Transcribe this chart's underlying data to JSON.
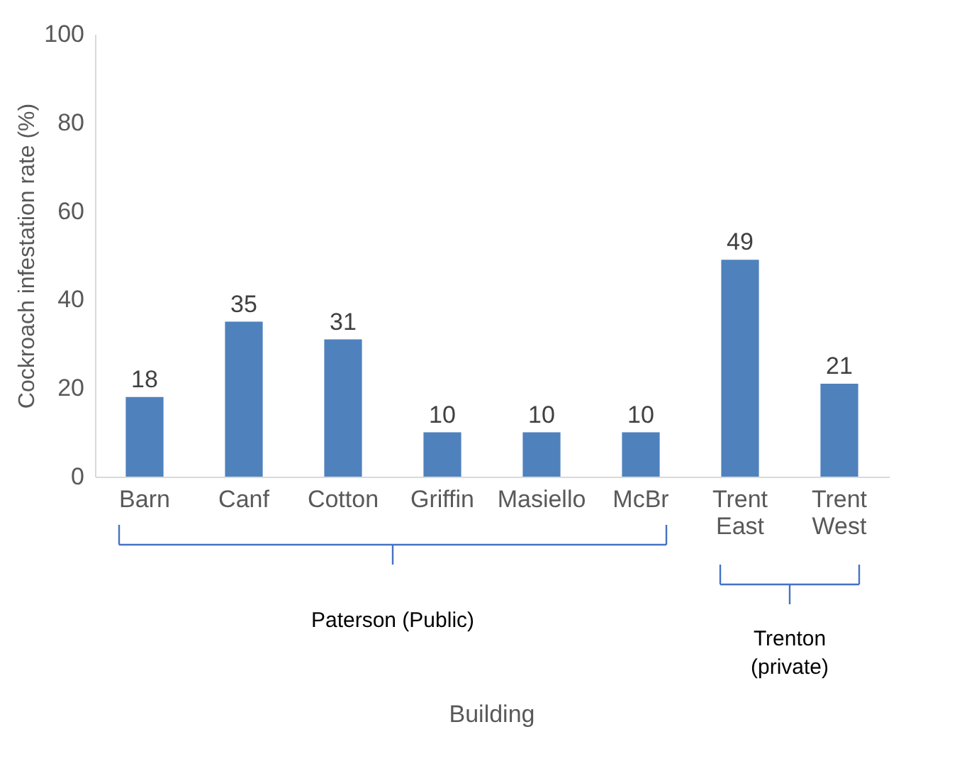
{
  "chart_data": {
    "type": "bar",
    "ylabel": "Cockroach infestation rate (%)",
    "categories": [
      "Barn",
      "Canf",
      "Cotton",
      "Griffin",
      "Masiello",
      "McBr",
      "Trent East",
      "Trent West"
    ],
    "values": [
      18,
      35,
      31,
      10,
      10,
      10,
      49,
      21
    ],
    "color": "#4f81bd",
    "ylim": [
      0,
      100
    ],
    "yticks": [
      0,
      20,
      40,
      60,
      80,
      100
    ],
    "grid": false,
    "data_labels": true,
    "annotations": [
      "Paterson (Public)",
      "Trenton\n(private)",
      "Building"
    ]
  }
}
